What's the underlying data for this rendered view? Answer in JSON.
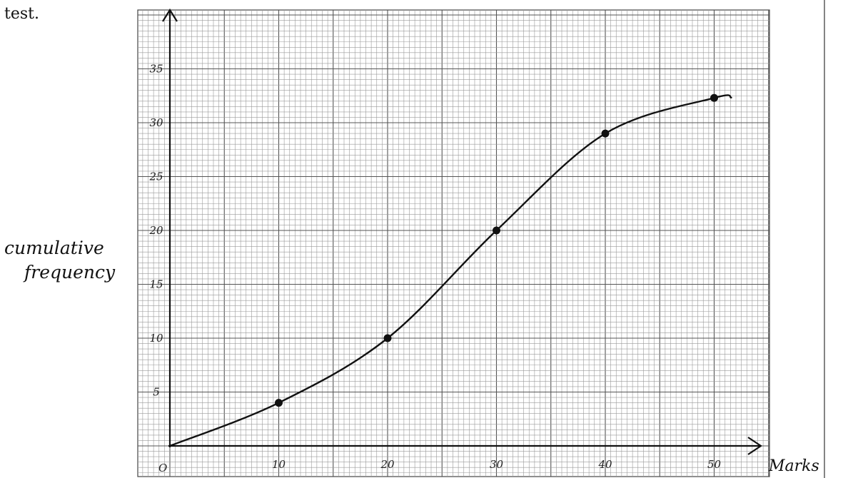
{
  "page": {
    "leading_text": "test."
  },
  "chart_data": {
    "type": "line",
    "title": "",
    "xlabel": "Marks",
    "ylabel_lines": [
      "cumulative",
      "frequency"
    ],
    "origin_label": "O",
    "x_ticks": [
      10,
      20,
      30,
      40,
      50
    ],
    "y_ticks": [
      5,
      10,
      15,
      20,
      25,
      30,
      35
    ],
    "xlim": [
      0,
      55
    ],
    "ylim": [
      0,
      37
    ],
    "grid": true,
    "points": [
      {
        "x": 10,
        "y": 4
      },
      {
        "x": 20,
        "y": 10
      },
      {
        "x": 30,
        "y": 20
      },
      {
        "x": 40,
        "y": 29
      },
      {
        "x": 50,
        "y": 32.3
      }
    ],
    "curve_start": {
      "x": 0,
      "y": 0
    },
    "colors": {
      "ink": "#111111",
      "grid_major": "#555555",
      "grid_minor": "#9a9a9a",
      "watermark": "#e8b4b4"
    }
  }
}
